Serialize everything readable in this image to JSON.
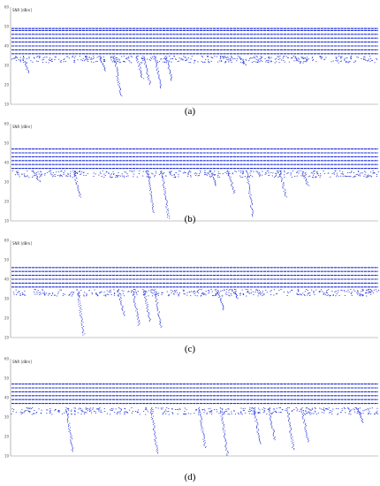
{
  "figure": {
    "captions": [
      "(a)",
      "(b)",
      "(c)",
      "(d)"
    ]
  },
  "colors": {
    "series": "#1f2fd6",
    "axis": "#8a8a8a",
    "grid": "#e6e6e6"
  },
  "chart_data": [
    {
      "type": "scatter",
      "title": "",
      "xlabel": "",
      "ylabel": "SNR [dBm]",
      "ylim": [
        10,
        60
      ],
      "yticks": [
        "10",
        "20",
        "30",
        "40",
        "50",
        "60"
      ],
      "grid": false,
      "band": {
        "levels": [
          36,
          38,
          40,
          42,
          44,
          46,
          48,
          49
        ],
        "description_level_range": [
          35,
          50
        ]
      },
      "dips": [
        {
          "x": 0.04,
          "min_y": 26
        },
        {
          "x": 0.21,
          "min_y": 34
        },
        {
          "x": 0.25,
          "min_y": 27
        },
        {
          "x": 0.29,
          "min_y": 14
        },
        {
          "x": 0.35,
          "min_y": 23
        },
        {
          "x": 0.37,
          "min_y": 20
        },
        {
          "x": 0.4,
          "min_y": 18
        },
        {
          "x": 0.43,
          "min_y": 22
        },
        {
          "x": 0.58,
          "min_y": 34
        },
        {
          "x": 0.63,
          "min_y": 30
        },
        {
          "x": 0.78,
          "min_y": 31
        }
      ]
    },
    {
      "type": "scatter",
      "title": "",
      "xlabel": "",
      "ylabel": "SNR [dBm]",
      "ylim": [
        10,
        60
      ],
      "yticks": [
        "10",
        "20",
        "30",
        "40",
        "50",
        "60"
      ],
      "grid": false,
      "band": {
        "levels": [
          37,
          39,
          41,
          43,
          45,
          47
        ],
        "description_level_range": [
          36,
          48
        ]
      },
      "dips": [
        {
          "x": 0.07,
          "min_y": 30
        },
        {
          "x": 0.18,
          "min_y": 22
        },
        {
          "x": 0.38,
          "min_y": 14
        },
        {
          "x": 0.42,
          "min_y": 11
        },
        {
          "x": 0.55,
          "min_y": 28
        },
        {
          "x": 0.6,
          "min_y": 24
        },
        {
          "x": 0.65,
          "min_y": 12
        },
        {
          "x": 0.74,
          "min_y": 22
        },
        {
          "x": 0.8,
          "min_y": 28
        }
      ]
    },
    {
      "type": "scatter",
      "title": "",
      "xlabel": "",
      "ylabel": "SNR [dBm]",
      "ylim": [
        10,
        60
      ],
      "yticks": [
        "10",
        "20",
        "30",
        "40",
        "50",
        "60"
      ],
      "grid": false,
      "band": {
        "levels": [
          36,
          38,
          40,
          42,
          44,
          46
        ],
        "description_level_range": [
          35,
          47
        ]
      },
      "dips": [
        {
          "x": 0.19,
          "min_y": 11
        },
        {
          "x": 0.3,
          "min_y": 21
        },
        {
          "x": 0.34,
          "min_y": 16
        },
        {
          "x": 0.37,
          "min_y": 18
        },
        {
          "x": 0.4,
          "min_y": 15
        },
        {
          "x": 0.57,
          "min_y": 24
        },
        {
          "x": 0.61,
          "min_y": 30
        }
      ]
    },
    {
      "type": "scatter",
      "title": "",
      "xlabel": "",
      "ylabel": "SNR [dBm]",
      "ylim": [
        10,
        60
      ],
      "yticks": [
        "10",
        "20",
        "30",
        "40",
        "50",
        "60"
      ],
      "grid": false,
      "band": {
        "levels": [
          37,
          39,
          41,
          43,
          45,
          47
        ],
        "description_level_range": [
          35,
          48
        ]
      },
      "dips": [
        {
          "x": 0.16,
          "min_y": 12
        },
        {
          "x": 0.39,
          "min_y": 11
        },
        {
          "x": 0.52,
          "min_y": 14
        },
        {
          "x": 0.58,
          "min_y": 10
        },
        {
          "x": 0.67,
          "min_y": 16
        },
        {
          "x": 0.71,
          "min_y": 18
        },
        {
          "x": 0.76,
          "min_y": 13
        },
        {
          "x": 0.8,
          "min_y": 17
        },
        {
          "x": 0.95,
          "min_y": 27
        }
      ]
    }
  ]
}
